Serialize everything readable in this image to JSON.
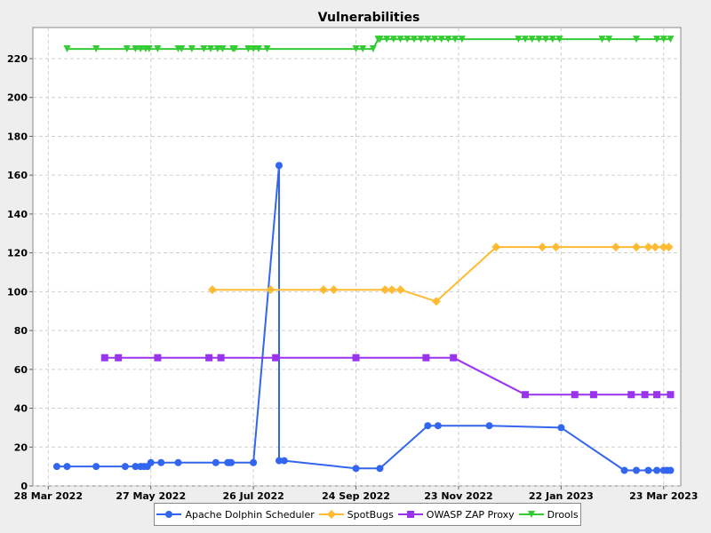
{
  "chart_data": {
    "type": "line",
    "title": "Vulnerabilities",
    "xlabel": "",
    "ylabel": "",
    "x_axis": "date",
    "xlim": [
      "2022-03-19",
      "2023-04-02"
    ],
    "ylim": [
      0,
      236
    ],
    "y_ticks": [
      0,
      20,
      40,
      60,
      80,
      100,
      120,
      140,
      160,
      180,
      200,
      220
    ],
    "x_ticks": [
      {
        "date": "2022-03-28",
        "label": "28 Mar 2022"
      },
      {
        "date": "2022-05-27",
        "label": "27 May 2022"
      },
      {
        "date": "2022-07-26",
        "label": "26 Jul 2022"
      },
      {
        "date": "2022-09-24",
        "label": "24 Sep 2022"
      },
      {
        "date": "2022-11-23",
        "label": "23 Nov 2022"
      },
      {
        "date": "2023-01-22",
        "label": "22 Jan 2023"
      },
      {
        "date": "2023-03-23",
        "label": "23 Mar 2023"
      }
    ],
    "grid": true,
    "background": "#ffffff",
    "legend_position": "bottom",
    "series": [
      {
        "name": "Apache Dolphin Scheduler",
        "color": "#3366ee",
        "marker": "circle",
        "points": [
          [
            "2022-04-02",
            10
          ],
          [
            "2022-04-08",
            10
          ],
          [
            "2022-04-25",
            10
          ],
          [
            "2022-05-12",
            10
          ],
          [
            "2022-05-18",
            10
          ],
          [
            "2022-05-21",
            10
          ],
          [
            "2022-05-23",
            10
          ],
          [
            "2022-05-25",
            10
          ],
          [
            "2022-05-27",
            12
          ],
          [
            "2022-06-02",
            12
          ],
          [
            "2022-06-12",
            12
          ],
          [
            "2022-07-04",
            12
          ],
          [
            "2022-07-11",
            12
          ],
          [
            "2022-07-12",
            12
          ],
          [
            "2022-07-13",
            12
          ],
          [
            "2022-07-26",
            12
          ],
          [
            "2022-08-10",
            165
          ],
          [
            "2022-08-10",
            13
          ],
          [
            "2022-08-13",
            13
          ],
          [
            "2022-09-24",
            9
          ],
          [
            "2022-10-08",
            9
          ],
          [
            "2022-11-05",
            31
          ],
          [
            "2022-11-11",
            31
          ],
          [
            "2022-12-11",
            31
          ],
          [
            "2023-01-22",
            30
          ],
          [
            "2023-02-28",
            8
          ],
          [
            "2023-03-07",
            8
          ],
          [
            "2023-03-14",
            8
          ],
          [
            "2023-03-19",
            8
          ],
          [
            "2023-03-23",
            8
          ],
          [
            "2023-03-25",
            8
          ],
          [
            "2023-03-27",
            8
          ]
        ]
      },
      {
        "name": "SpotBugs",
        "color": "#ffbb33",
        "marker": "diamond",
        "points": [
          [
            "2022-07-02",
            101
          ],
          [
            "2022-08-05",
            101
          ],
          [
            "2022-09-05",
            101
          ],
          [
            "2022-09-11",
            101
          ],
          [
            "2022-10-11",
            101
          ],
          [
            "2022-10-15",
            101
          ],
          [
            "2022-10-20",
            101
          ],
          [
            "2022-11-10",
            95
          ],
          [
            "2022-12-15",
            123
          ],
          [
            "2023-01-11",
            123
          ],
          [
            "2023-01-19",
            123
          ],
          [
            "2023-02-23",
            123
          ],
          [
            "2023-03-07",
            123
          ],
          [
            "2023-03-14",
            123
          ],
          [
            "2023-03-18",
            123
          ],
          [
            "2023-03-23",
            123
          ],
          [
            "2023-03-26",
            123
          ]
        ]
      },
      {
        "name": "OWASP ZAP Proxy",
        "color": "#9933ee",
        "marker": "square",
        "points": [
          [
            "2022-04-30",
            66
          ],
          [
            "2022-05-08",
            66
          ],
          [
            "2022-05-31",
            66
          ],
          [
            "2022-06-30",
            66
          ],
          [
            "2022-07-07",
            66
          ],
          [
            "2022-08-08",
            66
          ],
          [
            "2022-09-24",
            66
          ],
          [
            "2022-11-04",
            66
          ],
          [
            "2022-11-20",
            66
          ],
          [
            "2023-01-01",
            47
          ],
          [
            "2023-01-30",
            47
          ],
          [
            "2023-02-10",
            47
          ],
          [
            "2023-03-04",
            47
          ],
          [
            "2023-03-12",
            47
          ],
          [
            "2023-03-19",
            47
          ],
          [
            "2023-03-27",
            47
          ]
        ]
      },
      {
        "name": "Drools",
        "color": "#33cc33",
        "marker": "triangle-down",
        "points": [
          [
            "2022-04-08",
            225
          ],
          [
            "2022-04-25",
            225
          ],
          [
            "2022-05-13",
            225
          ],
          [
            "2022-05-18",
            225
          ],
          [
            "2022-05-21",
            225
          ],
          [
            "2022-05-24",
            225
          ],
          [
            "2022-05-26",
            225
          ],
          [
            "2022-05-31",
            225
          ],
          [
            "2022-06-12",
            225
          ],
          [
            "2022-06-14",
            225
          ],
          [
            "2022-06-20",
            225
          ],
          [
            "2022-06-27",
            225
          ],
          [
            "2022-07-01",
            225
          ],
          [
            "2022-07-05",
            225
          ],
          [
            "2022-07-08",
            225
          ],
          [
            "2022-07-14",
            225
          ],
          [
            "2022-07-15",
            225
          ],
          [
            "2022-07-23",
            225
          ],
          [
            "2022-07-26",
            225
          ],
          [
            "2022-07-29",
            225
          ],
          [
            "2022-08-03",
            225
          ],
          [
            "2022-09-24",
            225
          ],
          [
            "2022-09-28",
            225
          ],
          [
            "2022-10-04",
            225
          ],
          [
            "2022-10-07",
            230
          ],
          [
            "2022-10-08",
            230
          ],
          [
            "2022-10-12",
            230
          ],
          [
            "2022-10-16",
            230
          ],
          [
            "2022-10-20",
            230
          ],
          [
            "2022-10-24",
            230
          ],
          [
            "2022-10-28",
            230
          ],
          [
            "2022-11-01",
            230
          ],
          [
            "2022-11-05",
            230
          ],
          [
            "2022-11-09",
            230
          ],
          [
            "2022-11-13",
            230
          ],
          [
            "2022-11-17",
            230
          ],
          [
            "2022-11-21",
            230
          ],
          [
            "2022-11-25",
            230
          ],
          [
            "2022-12-28",
            230
          ],
          [
            "2023-01-01",
            230
          ],
          [
            "2023-01-05",
            230
          ],
          [
            "2023-01-09",
            230
          ],
          [
            "2023-01-13",
            230
          ],
          [
            "2023-01-17",
            230
          ],
          [
            "2023-01-21",
            230
          ],
          [
            "2023-02-15",
            230
          ],
          [
            "2023-02-19",
            230
          ],
          [
            "2023-03-07",
            230
          ],
          [
            "2023-03-19",
            230
          ],
          [
            "2023-03-23",
            230
          ],
          [
            "2023-03-27",
            230
          ]
        ]
      }
    ]
  }
}
